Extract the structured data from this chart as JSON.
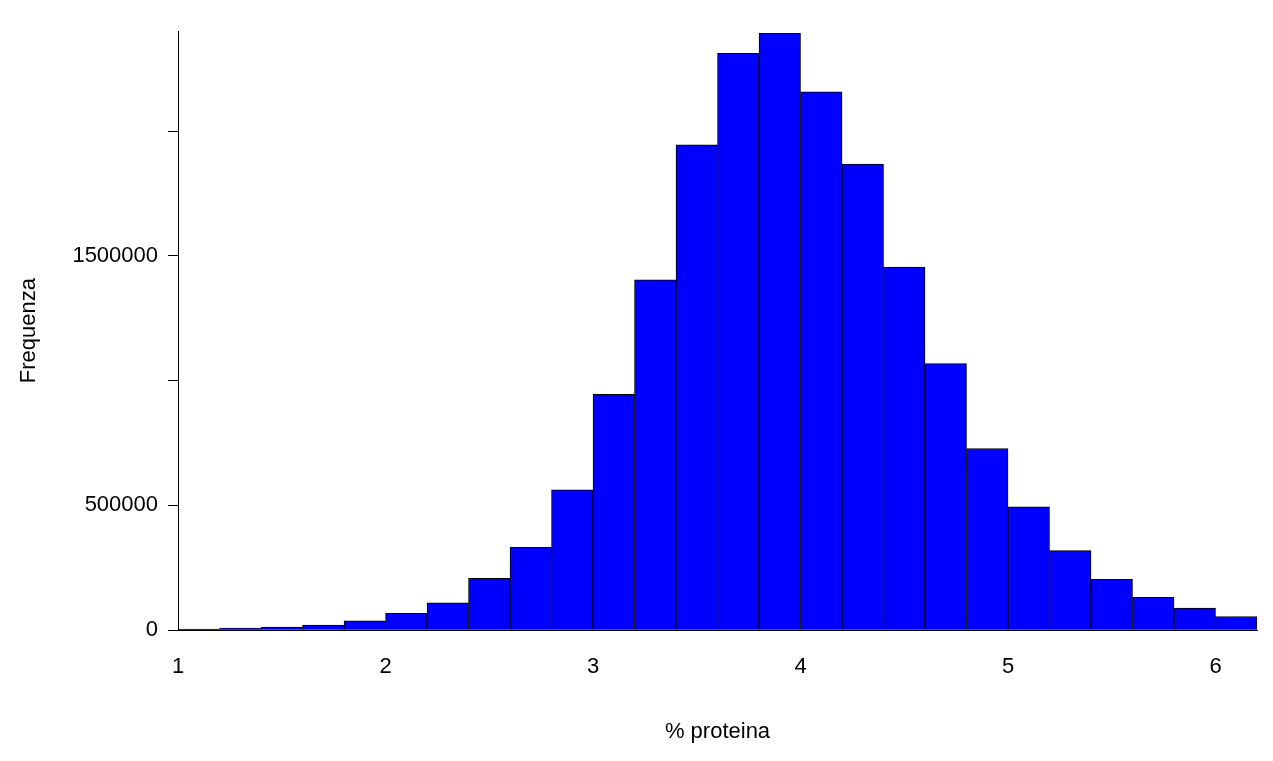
{
  "chart_data": {
    "type": "histogram",
    "xlabel": "% proteina",
    "ylabel": "Frequenza",
    "bins": [
      1.0,
      1.2,
      1.4,
      1.6,
      1.8,
      2.0,
      2.2,
      2.4,
      2.6,
      2.8,
      3.0,
      3.2,
      3.4,
      3.6,
      3.8,
      4.0,
      4.2,
      4.4,
      4.6,
      4.8,
      5.0,
      5.2,
      5.4,
      5.6,
      5.8,
      6.0,
      6.2
    ],
    "values": [
      4000,
      8000,
      13000,
      21000,
      38000,
      68000,
      110000,
      208000,
      332000,
      562000,
      945000,
      1404000,
      1945000,
      2311000,
      2391000,
      2157000,
      1868000,
      1455000,
      1068000,
      728000,
      494000,
      319000,
      204000,
      132000,
      89000,
      55000
    ],
    "color": "#0000ff",
    "xlim": [
      1,
      6.2
    ],
    "xticks": [
      1,
      2,
      3,
      4,
      5,
      6
    ],
    "ylim": [
      0,
      2400000
    ],
    "yticks": [
      0,
      500000,
      {
        "value": 1000000,
        "label": null
      },
      1500000,
      {
        "value": 2000000,
        "label": null
      }
    ],
    "grid": false,
    "legend": false
  }
}
